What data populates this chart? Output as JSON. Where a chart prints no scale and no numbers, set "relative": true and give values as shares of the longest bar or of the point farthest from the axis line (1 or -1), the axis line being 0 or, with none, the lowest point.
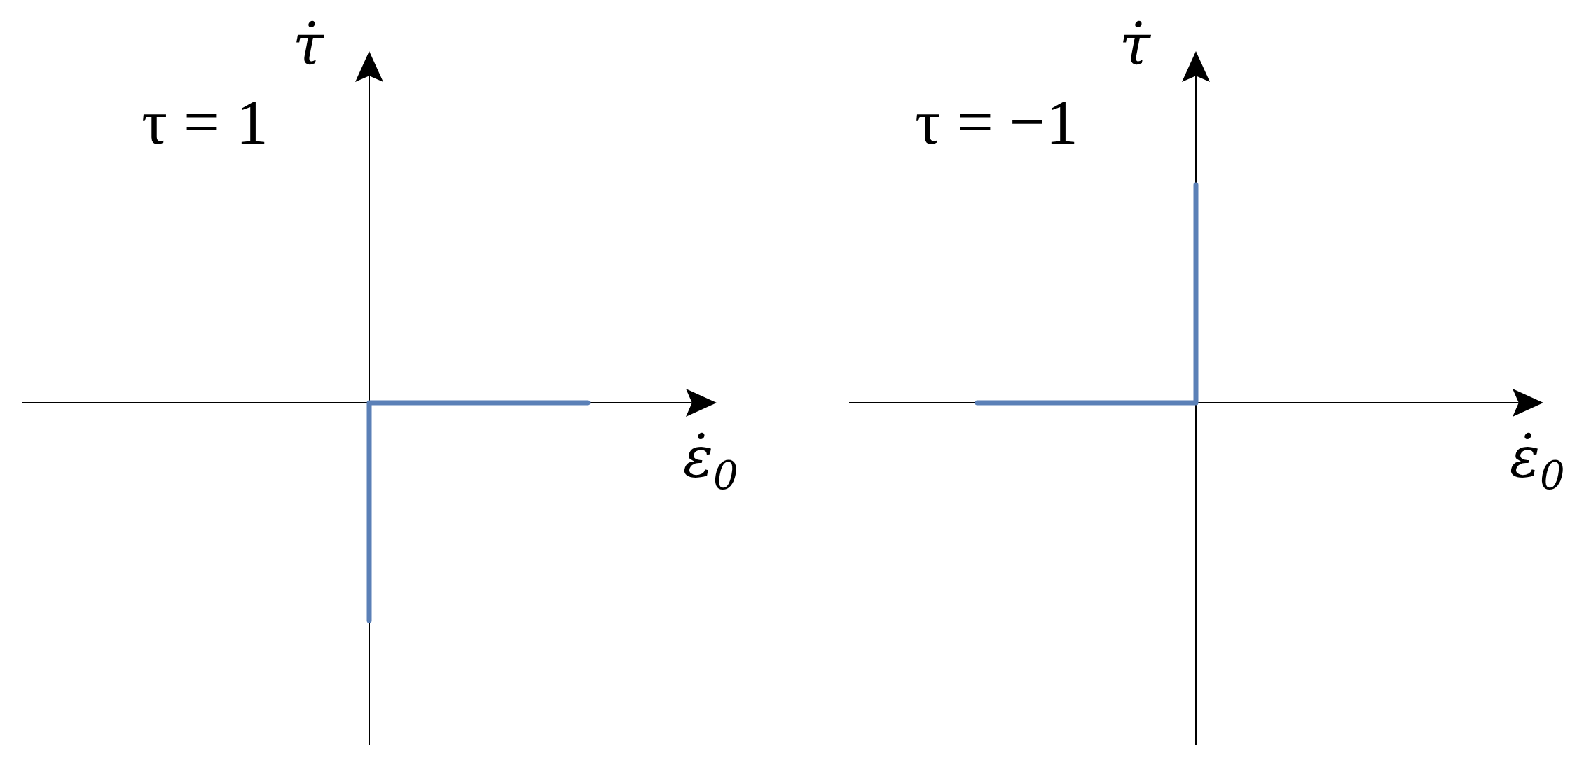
{
  "chart_data": [
    {
      "type": "step",
      "title": "τ = 1",
      "xlabel": "ε̇$_{0}$",
      "ylabel": "τ̇",
      "categories": [
        null,
        null
      ],
      "relative": true,
      "color": "#5b80b7",
      "values": [
        -1,
        0
      ]
    },
    {
      "type": "step",
      "title": "τ = −1",
      "xlabel": "ε̇$_{0}$",
      "ylabel": "τ̇",
      "categories": [
        null,
        null
      ],
      "relative": true,
      "color": "#5b80b7",
      "values": [
        0,
        1
      ]
    }
  ]
}
